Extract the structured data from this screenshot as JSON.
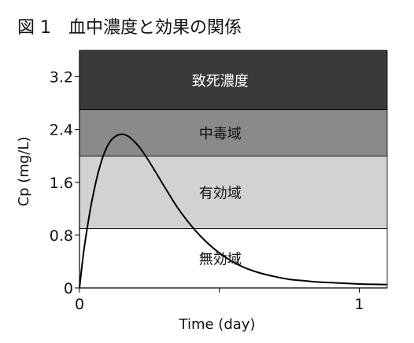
{
  "figure_title": "図 1　血中濃度と効果の関係",
  "chart_data": {
    "type": "line",
    "title": "図 1　血中濃度と効果の関係",
    "xlabel": "Time (day)",
    "ylabel": "Cp (mg/L)",
    "xlim": [
      0,
      1.1
    ],
    "ylim": [
      0,
      3.6
    ],
    "x_ticks": [
      {
        "value": 0,
        "label": "0"
      },
      {
        "value": 0.5,
        "label": ""
      },
      {
        "value": 1,
        "label": "1"
      }
    ],
    "y_ticks": [
      {
        "value": 0,
        "label": "0"
      },
      {
        "value": 0.8,
        "label": "0.8"
      },
      {
        "value": 1.6,
        "label": "1.6"
      },
      {
        "value": 2.4,
        "label": "2.4"
      },
      {
        "value": 3.2,
        "label": "3.2"
      }
    ],
    "grid": false,
    "bands": [
      {
        "label": "無効域",
        "y_from": 0,
        "y_to": 0.9,
        "color": "#ffffff",
        "label_color": "#111111"
      },
      {
        "label": "有効域",
        "y_from": 0.9,
        "y_to": 2.0,
        "color": "#d2d2d2",
        "label_color": "#111111"
      },
      {
        "label": "中毒域",
        "y_from": 2.0,
        "y_to": 2.7,
        "color": "#8a8a8a",
        "label_color": "#111111"
      },
      {
        "label": "致死濃度",
        "y_from": 2.7,
        "y_to": 3.6,
        "color": "#3a3a3a",
        "label_color": "#ffffff"
      }
    ],
    "series": [
      {
        "color": "#000000",
        "x": [
          0,
          0.01,
          0.02,
          0.04,
          0.06,
          0.08,
          0.1,
          0.12,
          0.15,
          0.18,
          0.22,
          0.26,
          0.3,
          0.35,
          0.4,
          0.45,
          0.5,
          0.55,
          0.6,
          0.65,
          0.7,
          0.75,
          0.8,
          0.85,
          0.9,
          0.95,
          1.0,
          1.05,
          1.1
        ],
        "y": [
          0,
          0.38,
          0.7,
          1.22,
          1.63,
          1.94,
          2.15,
          2.27,
          2.33,
          2.28,
          2.1,
          1.84,
          1.56,
          1.22,
          0.94,
          0.71,
          0.53,
          0.39,
          0.29,
          0.22,
          0.17,
          0.13,
          0.11,
          0.09,
          0.08,
          0.07,
          0.06,
          0.055,
          0.05
        ]
      }
    ]
  }
}
